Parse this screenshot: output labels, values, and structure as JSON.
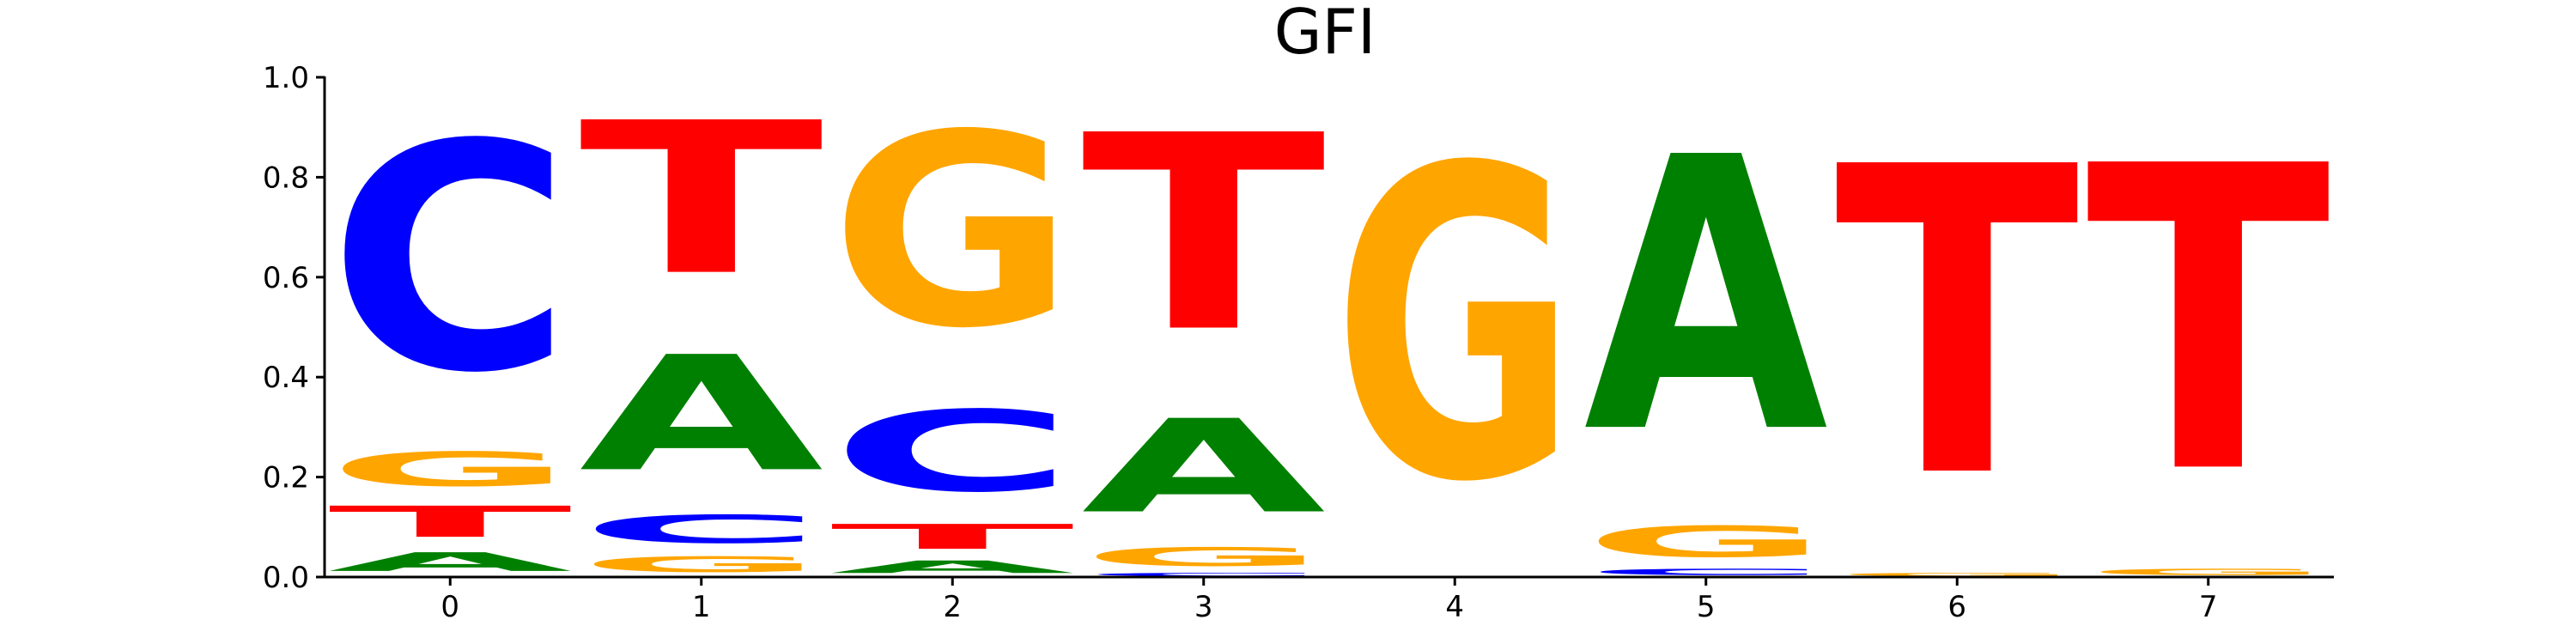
{
  "chart_data": {
    "type": "sequence-logo",
    "title": "GFI",
    "xlabel": "",
    "ylabel": "",
    "ylim": [
      0,
      1.0
    ],
    "y_ticks": [
      "0.0",
      "0.2",
      "0.4",
      "0.6",
      "0.8",
      "1.0"
    ],
    "positions": [
      "0",
      "1",
      "2",
      "3",
      "4",
      "5",
      "6",
      "7"
    ],
    "colors": {
      "A": "#008000",
      "C": "#0000ff",
      "G": "#ffa500",
      "T": "#ff0000"
    },
    "letter_stacks": [
      [
        {
          "base": "A",
          "value": 0.06
        },
        {
          "base": "T",
          "value": 0.1
        },
        {
          "base": "G",
          "value": 0.11
        },
        {
          "base": "C",
          "value": 0.73
        }
      ],
      [
        {
          "base": "G",
          "value": 0.05
        },
        {
          "base": "C",
          "value": 0.09
        },
        {
          "base": "A",
          "value": 0.37
        },
        {
          "base": "T",
          "value": 0.49
        }
      ],
      [
        {
          "base": "A",
          "value": 0.04
        },
        {
          "base": "T",
          "value": 0.08
        },
        {
          "base": "C",
          "value": 0.26
        },
        {
          "base": "G",
          "value": 0.62
        }
      ],
      [
        {
          "base": "C",
          "value": 0.01
        },
        {
          "base": "G",
          "value": 0.06
        },
        {
          "base": "A",
          "value": 0.3
        },
        {
          "base": "T",
          "value": 0.63
        }
      ],
      [
        {
          "base": "G",
          "value": 1.0
        }
      ],
      [
        {
          "base": "C",
          "value": 0.02
        },
        {
          "base": "G",
          "value": 0.1
        },
        {
          "base": "A",
          "value": 0.88
        }
      ],
      [
        {
          "base": "G",
          "value": 0.01
        },
        {
          "base": "T",
          "value": 0.99
        }
      ],
      [
        {
          "base": "G",
          "value": 0.02
        },
        {
          "base": "T",
          "value": 0.98
        }
      ]
    ]
  }
}
